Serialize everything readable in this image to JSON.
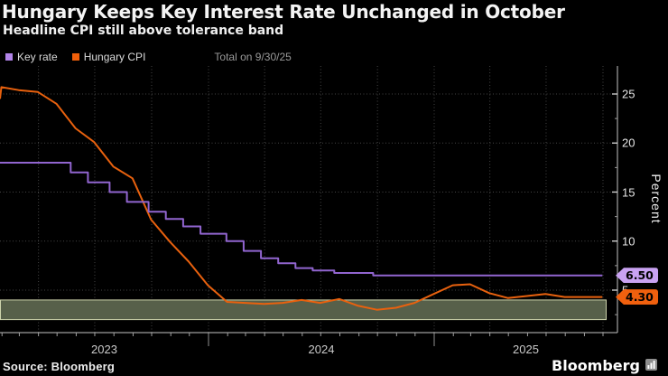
{
  "header": {
    "title": "Hungary Keeps Key Interest Rate Unchanged in October",
    "subtitle": "Headline CPI still above tolerance band"
  },
  "legend": {
    "items": [
      {
        "label": "Key rate",
        "color": "#b183e8"
      },
      {
        "label": "Hungary CPI",
        "color": "#f05f0a"
      }
    ],
    "note": "Total on 9/30/25"
  },
  "footer": {
    "source": "Source: Bloomberg",
    "logo": "Bloomberg"
  },
  "chart_data": {
    "type": "line",
    "ylabel": "Percent",
    "yticks": [
      25,
      20,
      15,
      10,
      5
    ],
    "yticks_minor": [
      22.5,
      17.5,
      12.5,
      7.5,
      2.5
    ],
    "xticks": [
      "2023",
      "2024",
      "2025"
    ],
    "grid": "dotted",
    "legend_position": "top-left",
    "tolerance_band": {
      "low": 2,
      "high": 4,
      "fill": "#57604a",
      "edge": "#cdd3ab"
    },
    "series": [
      {
        "name": "Key rate",
        "color": "#9165cf",
        "mode": "step",
        "badge": {
          "label": "6.50",
          "bg": "#c9a2f2"
        },
        "points": [
          [
            "2023-01-01",
            18.0
          ],
          [
            "2023-05-23",
            17.0
          ],
          [
            "2023-06-20",
            16.0
          ],
          [
            "2023-07-25",
            15.0
          ],
          [
            "2023-08-22",
            14.0
          ],
          [
            "2023-09-26",
            13.0
          ],
          [
            "2023-10-24",
            12.25
          ],
          [
            "2023-11-21",
            11.5
          ],
          [
            "2023-12-19",
            10.75
          ],
          [
            "2024-01-30",
            10.0
          ],
          [
            "2024-02-27",
            9.0
          ],
          [
            "2024-03-26",
            8.25
          ],
          [
            "2024-04-23",
            7.75
          ],
          [
            "2024-05-21",
            7.25
          ],
          [
            "2024-06-18",
            7.0
          ],
          [
            "2024-07-23",
            6.75
          ],
          [
            "2024-09-24",
            6.5
          ],
          [
            "2025-09-30",
            6.5
          ]
        ]
      },
      {
        "name": "Hungary CPI",
        "color": "#e8610e",
        "mode": "linear",
        "badge": {
          "label": "4.30",
          "bg": "#f0600e"
        },
        "points": [
          [
            "2022-12-31",
            24.5
          ],
          [
            "2023-01-31",
            25.7
          ],
          [
            "2023-02-28",
            25.4
          ],
          [
            "2023-03-31",
            25.2
          ],
          [
            "2023-04-30",
            24.0
          ],
          [
            "2023-05-31",
            21.5
          ],
          [
            "2023-06-30",
            20.1
          ],
          [
            "2023-07-31",
            17.6
          ],
          [
            "2023-08-31",
            16.4
          ],
          [
            "2023-09-30",
            12.2
          ],
          [
            "2023-10-31",
            9.9
          ],
          [
            "2023-11-30",
            7.9
          ],
          [
            "2023-12-31",
            5.5
          ],
          [
            "2024-01-31",
            3.8
          ],
          [
            "2024-02-29",
            3.7
          ],
          [
            "2024-03-31",
            3.6
          ],
          [
            "2024-04-30",
            3.7
          ],
          [
            "2024-05-31",
            4.0
          ],
          [
            "2024-06-30",
            3.7
          ],
          [
            "2024-07-31",
            4.1
          ],
          [
            "2024-08-31",
            3.4
          ],
          [
            "2024-09-30",
            3.0
          ],
          [
            "2024-10-31",
            3.2
          ],
          [
            "2024-11-30",
            3.7
          ],
          [
            "2024-12-31",
            4.6
          ],
          [
            "2025-01-31",
            5.5
          ],
          [
            "2025-02-28",
            5.6
          ],
          [
            "2025-03-31",
            4.7
          ],
          [
            "2025-04-30",
            4.2
          ],
          [
            "2025-05-31",
            4.4
          ],
          [
            "2025-06-30",
            4.6
          ],
          [
            "2025-07-31",
            4.3
          ],
          [
            "2025-08-31",
            4.3
          ],
          [
            "2025-09-30",
            4.3
          ]
        ]
      }
    ]
  }
}
